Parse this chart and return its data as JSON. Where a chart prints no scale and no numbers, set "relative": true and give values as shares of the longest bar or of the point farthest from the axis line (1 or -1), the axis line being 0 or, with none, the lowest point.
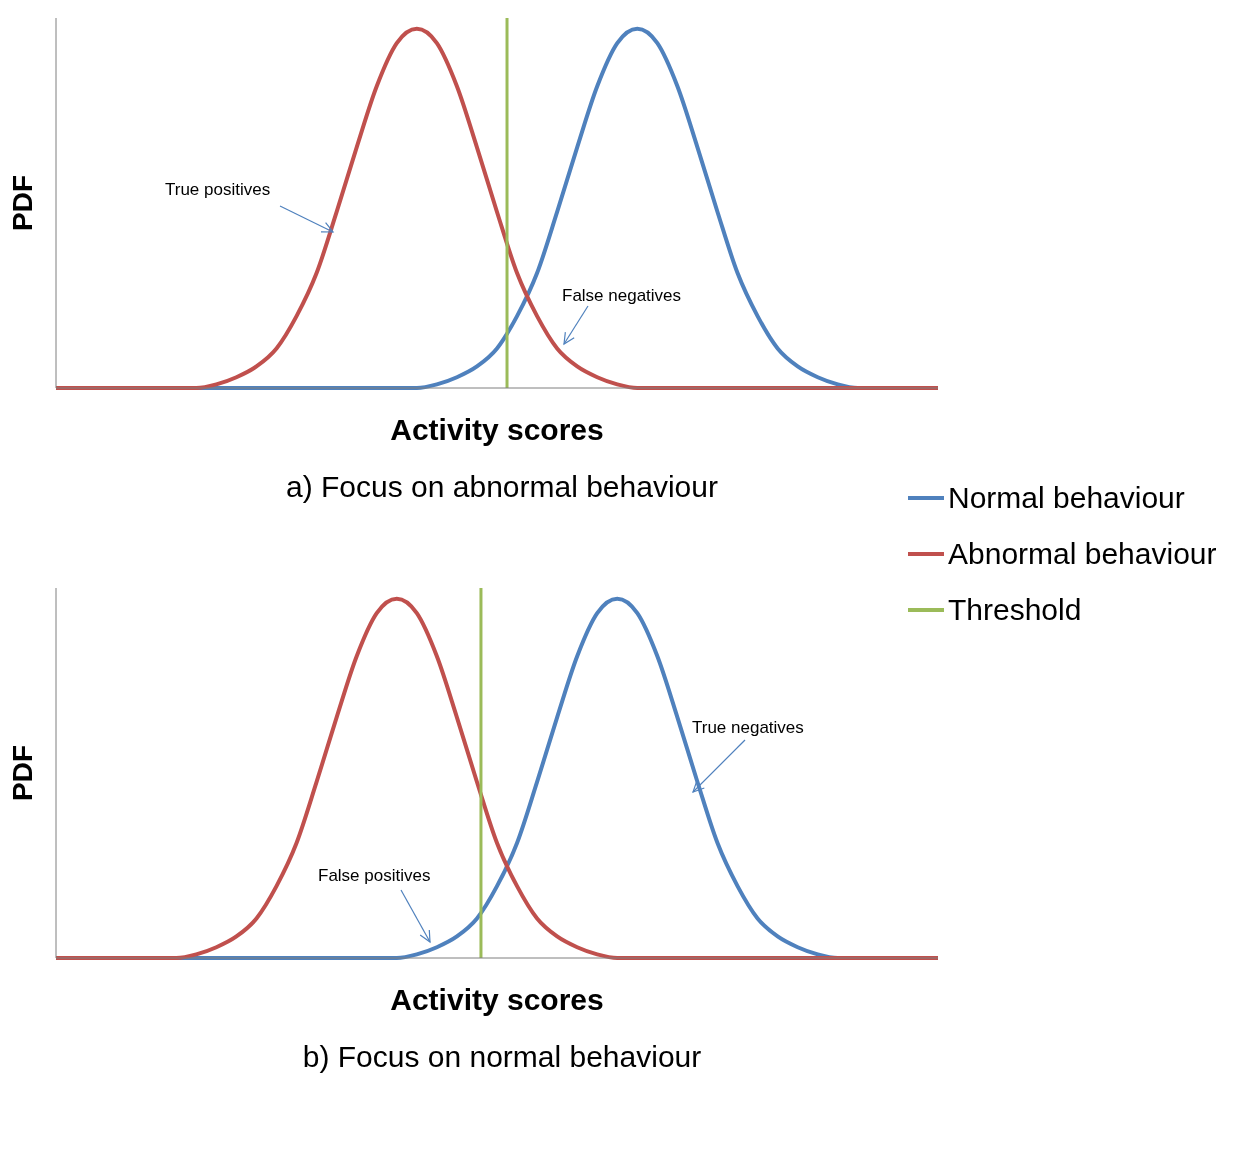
{
  "chart_data": [
    {
      "type": "line",
      "relative": true,
      "xlabel": "Activity scores",
      "ylabel": "PDF",
      "title": "a) Focus on abnormal behaviour",
      "categories": [
        null,
        null,
        null,
        null,
        null,
        null,
        null,
        null,
        null,
        null,
        null,
        null,
        null,
        null,
        null,
        null,
        null,
        null,
        null,
        null,
        null,
        null,
        null,
        null,
        null,
        null,
        null,
        null,
        null,
        null,
        null,
        null,
        null,
        null,
        null,
        null,
        null,
        null,
        null,
        null,
        null,
        null,
        null,
        null,
        null
      ],
      "series": [
        {
          "name": "Normal behaviour",
          "color": "#4f81bd",
          "values": [
            null,
            null,
            null,
            null,
            null,
            null,
            0,
            0,
            0,
            0,
            0,
            0,
            0,
            0,
            0,
            0,
            0,
            0,
            0,
            0.01,
            0.03,
            0.06,
            0.11,
            0.2,
            0.32,
            0.49,
            0.67,
            0.84,
            0.96,
            1,
            0.96,
            0.84,
            0.67,
            0.49,
            0.32,
            0.2,
            0.11,
            0.06,
            0.03,
            0.01,
            0,
            0,
            null,
            null,
            null
          ]
        },
        {
          "name": "Abnormal behaviour",
          "color": "#c0504d",
          "values": [
            0,
            0,
            0,
            0,
            0,
            0,
            0,
            0,
            0.01,
            0.03,
            0.06,
            0.11,
            0.2,
            0.32,
            0.49,
            0.67,
            0.84,
            0.96,
            1,
            0.96,
            0.84,
            0.67,
            0.49,
            0.32,
            0.2,
            0.11,
            0.06,
            0.03,
            0.01,
            0,
            0,
            0,
            0,
            0,
            0,
            0,
            0,
            0,
            0,
            0,
            0,
            0,
            0,
            0,
            0
          ]
        }
      ],
      "ref_lines": [
        {
          "axis": "x",
          "label": "Threshold",
          "color": "#9bbb59"
        }
      ],
      "annotations": [
        "True positives",
        "False negatives"
      ],
      "legend": "right"
    },
    {
      "type": "line",
      "relative": true,
      "xlabel": "Activity scores",
      "ylabel": "PDF",
      "title": "b) Focus on normal behaviour",
      "categories": [
        null,
        null,
        null,
        null,
        null,
        null,
        null,
        null,
        null,
        null,
        null,
        null,
        null,
        null,
        null,
        null,
        null,
        null,
        null,
        null,
        null,
        null,
        null,
        null,
        null,
        null,
        null,
        null,
        null,
        null,
        null,
        null,
        null,
        null,
        null,
        null,
        null,
        null,
        null,
        null,
        null,
        null,
        null,
        null,
        null
      ],
      "series": [
        {
          "color": "#4f81bd",
          "values": [
            null,
            null,
            null,
            null,
            null,
            0,
            0,
            0,
            0,
            0,
            0,
            0,
            0,
            0,
            0,
            0,
            0,
            0,
            0.01,
            0.03,
            0.06,
            0.11,
            0.2,
            0.32,
            0.49,
            0.67,
            0.84,
            0.96,
            1,
            0.96,
            0.84,
            0.67,
            0.49,
            0.32,
            0.2,
            0.11,
            0.06,
            0.03,
            0.01,
            0,
            0,
            null,
            null,
            null,
            null
          ]
        },
        {
          "color": "#c0504d",
          "values": [
            0,
            0,
            0,
            0,
            0,
            0,
            0,
            0.01,
            0.03,
            0.06,
            0.11,
            0.2,
            0.32,
            0.49,
            0.67,
            0.84,
            0.96,
            1,
            0.96,
            0.84,
            0.67,
            0.49,
            0.32,
            0.2,
            0.11,
            0.06,
            0.03,
            0.01,
            0,
            0,
            0,
            0,
            0,
            0,
            0,
            0,
            0,
            0,
            0,
            0,
            0,
            0,
            0,
            0,
            0
          ]
        }
      ],
      "ref_lines": [
        {
          "axis": "x",
          "color": "#9bbb59"
        }
      ],
      "annotations": [
        "True negatives",
        "False positives"
      ]
    }
  ]
}
